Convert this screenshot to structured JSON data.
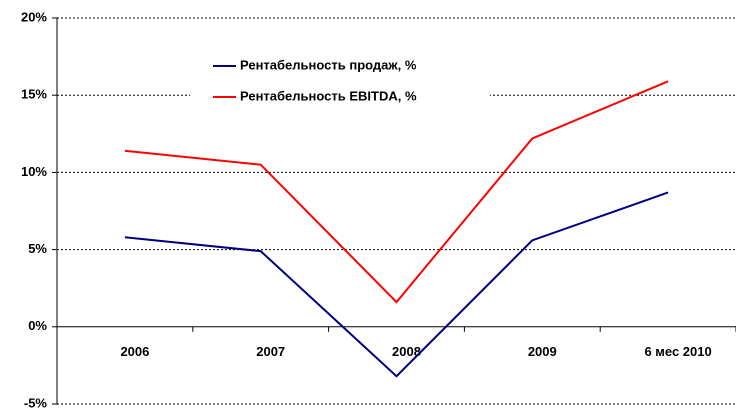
{
  "chart_data": {
    "type": "line",
    "categories": [
      "2006",
      "2007",
      "2008",
      "2009",
      "6 мес 2010"
    ],
    "series": [
      {
        "name": "Рентабельность продаж, %",
        "color": "#000080",
        "values": [
          5.8,
          4.9,
          -3.2,
          5.6,
          8.7
        ]
      },
      {
        "name": "Рентабельность EBITDA, %",
        "color": "#ff0000",
        "values": [
          11.4,
          10.5,
          1.6,
          12.2,
          15.9
        ]
      }
    ],
    "ylim": [
      -5,
      20
    ],
    "yticks": [
      {
        "value": -5,
        "label": "-5%"
      },
      {
        "value": 0,
        "label": "0%"
      },
      {
        "value": 5,
        "label": "5%"
      },
      {
        "value": 10,
        "label": "10%"
      },
      {
        "value": 15,
        "label": "15%"
      },
      {
        "value": 20,
        "label": "20%"
      }
    ],
    "grid": true,
    "legend": "top"
  }
}
